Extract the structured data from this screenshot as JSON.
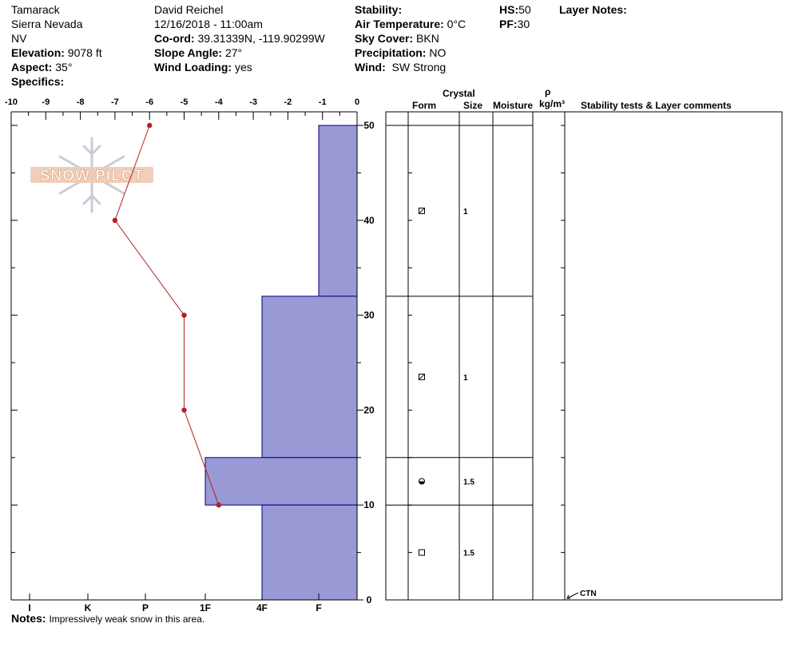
{
  "header": {
    "location": "Tamarack",
    "range": "Sierra Nevada",
    "state": "NV",
    "elevation_label": "Elevation:",
    "elevation_value": "9078 ft",
    "aspect_label": "Aspect:",
    "aspect_value": "35°",
    "specifics_label": "Specifics:",
    "observer": "David Reichel",
    "datetime": "12/16/2018 - 11:00am",
    "coord_label": "Co-ord:",
    "coord_value": "39.31339N, -119.90299W",
    "slope_label": "Slope Angle:",
    "slope_value": "27°",
    "wind_loading_label": "Wind Loading:",
    "wind_loading_value": "yes",
    "stability_label": "Stability:",
    "air_temp_label": "Air Temperature:",
    "air_temp_value": "0°C",
    "sky_label": "Sky Cover:",
    "sky_value": "BKN",
    "precip_label": "Precipitation:",
    "precip_value": "NO",
    "wind_label": "Wind:",
    "wind_value": "SW Strong",
    "hs_label": "HS:",
    "hs_value": "50",
    "pf_label": "PF:",
    "pf_value": "30",
    "layer_notes_label": "Layer Notes:"
  },
  "notes": {
    "label": "Notes:",
    "text": "Impressively weak snow in this area."
  },
  "watermark": "SNOW PILOT",
  "table": {
    "crystal_label": "Crystal",
    "form_label": "Form",
    "size_label": "Size",
    "moisture_label": "Moisture",
    "rho_label": "ρ",
    "density_label": "kg/m³",
    "stability_label": "Stability tests & Layer comments",
    "layers": [
      {
        "bottom": 32,
        "top": 50,
        "form": "faceted-rounded",
        "size": "1"
      },
      {
        "bottom": 15,
        "top": 32,
        "form": "faceted-rounded",
        "size": "1"
      },
      {
        "bottom": 10,
        "top": 15,
        "form": "melt-freeze",
        "size": "1.5"
      },
      {
        "bottom": 0,
        "top": 10,
        "form": "faceted",
        "size": "1.5"
      }
    ],
    "tests": [
      {
        "height": 0,
        "text": "CTN"
      }
    ]
  },
  "chart_data": {
    "type": "profile",
    "temperature": {
      "axis_label_ticks": [
        "-10",
        "-9",
        "-8",
        "-7",
        "-6",
        "-5",
        "-4",
        "-3",
        "-2",
        "-1",
        "0"
      ],
      "xlim": [
        -10,
        0
      ],
      "points": [
        {
          "depth": 50,
          "temp": -6
        },
        {
          "depth": 40,
          "temp": -7
        },
        {
          "depth": 30,
          "temp": -5
        },
        {
          "depth": 20,
          "temp": -5
        },
        {
          "depth": 10,
          "temp": -4
        }
      ],
      "color": "#b22222"
    },
    "hardness": {
      "tick_labels": [
        "I",
        "K",
        "P",
        "1F",
        "4F",
        "F"
      ],
      "color": "#9999d6",
      "edge_color": "#000080",
      "layers": [
        {
          "bottom": 32,
          "top": 50,
          "hardness": "F"
        },
        {
          "bottom": 15,
          "top": 32,
          "hardness": "4F"
        },
        {
          "bottom": 10,
          "top": 15,
          "hardness": "1F"
        },
        {
          "bottom": 0,
          "top": 10,
          "hardness": "4F"
        }
      ]
    },
    "height": {
      "ylim": [
        0,
        50
      ],
      "tick_labels": [
        "50",
        "40",
        "30",
        "20",
        "10",
        "0"
      ]
    }
  }
}
